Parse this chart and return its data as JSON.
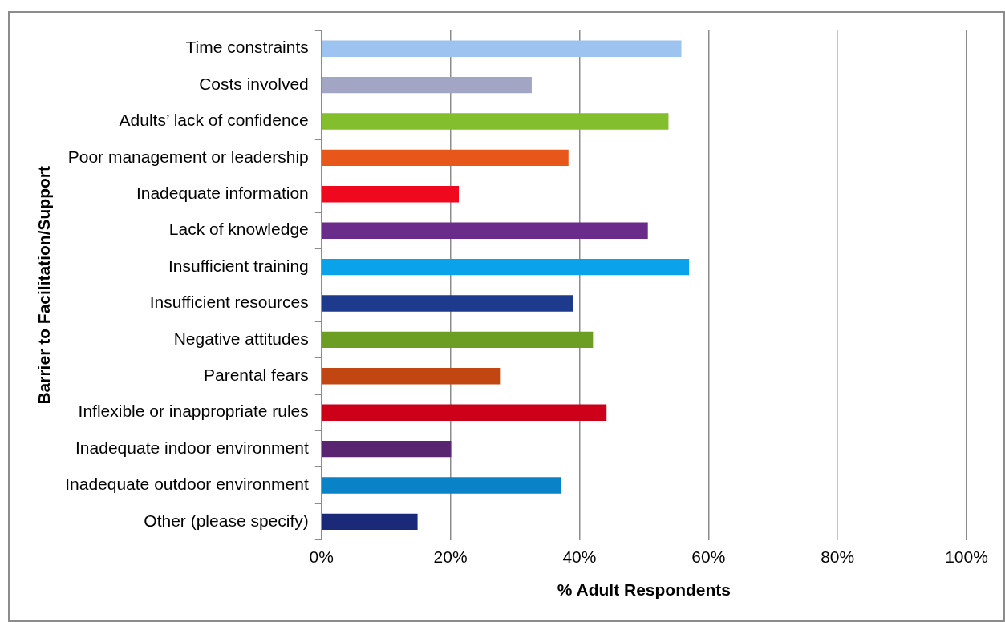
{
  "chart_data": {
    "type": "bar",
    "orientation": "horizontal",
    "xlabel": "% Adult Respondents",
    "ylabel": "Barrier to Facilitation/Support",
    "categories": [
      "Time constraints",
      "Costs involved",
      "Adults’ lack of confidence",
      "Poor management or leadership",
      "Inadequate information",
      "Lack of knowledge",
      "Insufficient training",
      "Insufficient resources",
      "Negative attitudes",
      "Parental fears",
      "Inflexible or inappropriate rules",
      "Inadequate indoor environment",
      "Inadequate outdoor environment",
      "Other (please specify)"
    ],
    "values": [
      55.8,
      32.6,
      53.8,
      38.3,
      21.3,
      50.6,
      57.0,
      39.0,
      42.1,
      27.8,
      44.2,
      20.1,
      37.1,
      14.9
    ],
    "colors": [
      "#9dc3f0",
      "#a2a5c4",
      "#83be2d",
      "#e8571a",
      "#f0081f",
      "#6a2b8a",
      "#0aa2e8",
      "#1d3a8c",
      "#6b9e22",
      "#c14612",
      "#cc0019",
      "#5a2570",
      "#0a82c8",
      "#1a2a78"
    ],
    "xlim": [
      0,
      100
    ],
    "xticks": [
      {
        "value": 0,
        "label": "0%"
      },
      {
        "value": 20,
        "label": "20%"
      },
      {
        "value": 40,
        "label": "40%"
      },
      {
        "value": 60,
        "label": "60%"
      },
      {
        "value": 80,
        "label": "80%"
      },
      {
        "value": 100,
        "label": "100%"
      }
    ],
    "grid": "x",
    "legend": false
  }
}
